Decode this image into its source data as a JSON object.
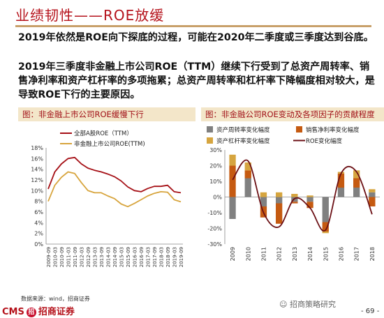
{
  "slide": {
    "title": "业绩韧性——ROE放缓",
    "para1": "2019年依然是ROE向下探底的过程，可能在2020年二季度或三季度达到谷底。",
    "para2": "2019年三季度非金融上市公司ROE（TTM）继续下行受到了总资产周转率、销售净利率和资产杠杆率的多项拖累；总资产周转率和杠杆率下降幅度相对较大，是导致ROE下行的主要原因。"
  },
  "left_panel": {
    "title": "图：非金融上市公司ROE缓慢下行"
  },
  "right_panel": {
    "title": "图：非金融公司ROE变动及各项因子的贡献程度"
  },
  "footer": {
    "source": "数据来源：wind，招商证券",
    "logo_text": "CMS",
    "logo_badge": "招",
    "logo_cn": "招商证券",
    "wechat": "招商策略研究",
    "page": "- 69 -"
  },
  "colors": {
    "accent": "#b5121b",
    "roe_all": "#a50f15",
    "roe_nonfin": "#d7a43c",
    "turnover": "#808080",
    "margin": "#c55a11",
    "leverage": "#d6a53f",
    "roe_change": "#6b0f14"
  },
  "chart_data": [
    {
      "type": "line",
      "ylim": [
        0,
        18
      ],
      "y_ticks": [
        "0%",
        "2%",
        "4%",
        "6%",
        "8%",
        "10%",
        "12%",
        "14%",
        "16%",
        "18%"
      ],
      "x_labels": [
        "2009-09",
        "2010-03",
        "2010-09",
        "2011-03",
        "2011-09",
        "2012-03",
        "2012-09",
        "2013-03",
        "2013-09",
        "2014-03",
        "2014-09",
        "2015-03",
        "2015-09",
        "2016-03",
        "2016-09",
        "2017-03",
        "2017-09",
        "2018-03",
        "2018-09",
        "2019-03",
        "2019-09"
      ],
      "series": [
        {
          "name": "全部A股ROE（TTM）",
          "color": "#a50f15",
          "values": [
            10.3,
            13.5,
            15.0,
            16.0,
            16.2,
            15.0,
            14.2,
            13.8,
            13.5,
            13.1,
            12.6,
            11.8,
            10.7,
            10.0,
            9.8,
            10.4,
            10.8,
            10.8,
            11.0,
            9.8,
            9.6
          ]
        },
        {
          "name": "非金融上市公司ROE(TTM)",
          "color": "#d7a43c",
          "values": [
            8.0,
            11.0,
            12.5,
            13.5,
            13.2,
            11.5,
            10.0,
            9.6,
            9.6,
            9.0,
            8.5,
            7.5,
            7.0,
            7.6,
            8.3,
            9.0,
            9.5,
            9.8,
            9.7,
            8.3,
            7.9
          ]
        }
      ]
    },
    {
      "type": "bar",
      "ylim": [
        -30,
        30
      ],
      "y_ticks": [
        "-30%",
        "-20%",
        "-10%",
        "0%",
        "10%",
        "20%",
        "30%"
      ],
      "categories": [
        "2009",
        "2010",
        "2011",
        "2012",
        "2013",
        "2014",
        "2015",
        "2016",
        "2017",
        "2018"
      ],
      "series": [
        {
          "name": "资产周转率变化幅度",
          "color": "#808080",
          "values": [
            -14,
            12,
            -6,
            -4,
            -3,
            -3,
            -16,
            6,
            6,
            3
          ]
        },
        {
          "name": "销售净利率变化幅度",
          "color": "#c55a11",
          "values": [
            20,
            5,
            -7,
            -13,
            -1,
            -4,
            -6,
            9,
            6,
            -6
          ]
        },
        {
          "name": "资产杠杆率变化幅度",
          "color": "#d6a53f",
          "values": [
            7,
            5,
            3,
            3,
            2,
            1,
            -1,
            1,
            5,
            2
          ]
        },
        {
          "name": "ROE变化幅度",
          "color": "#6b0f14",
          "values": [
            11,
            23,
            -10,
            -19,
            -1,
            -7,
            -21,
            15,
            16,
            -11
          ]
        }
      ]
    }
  ]
}
